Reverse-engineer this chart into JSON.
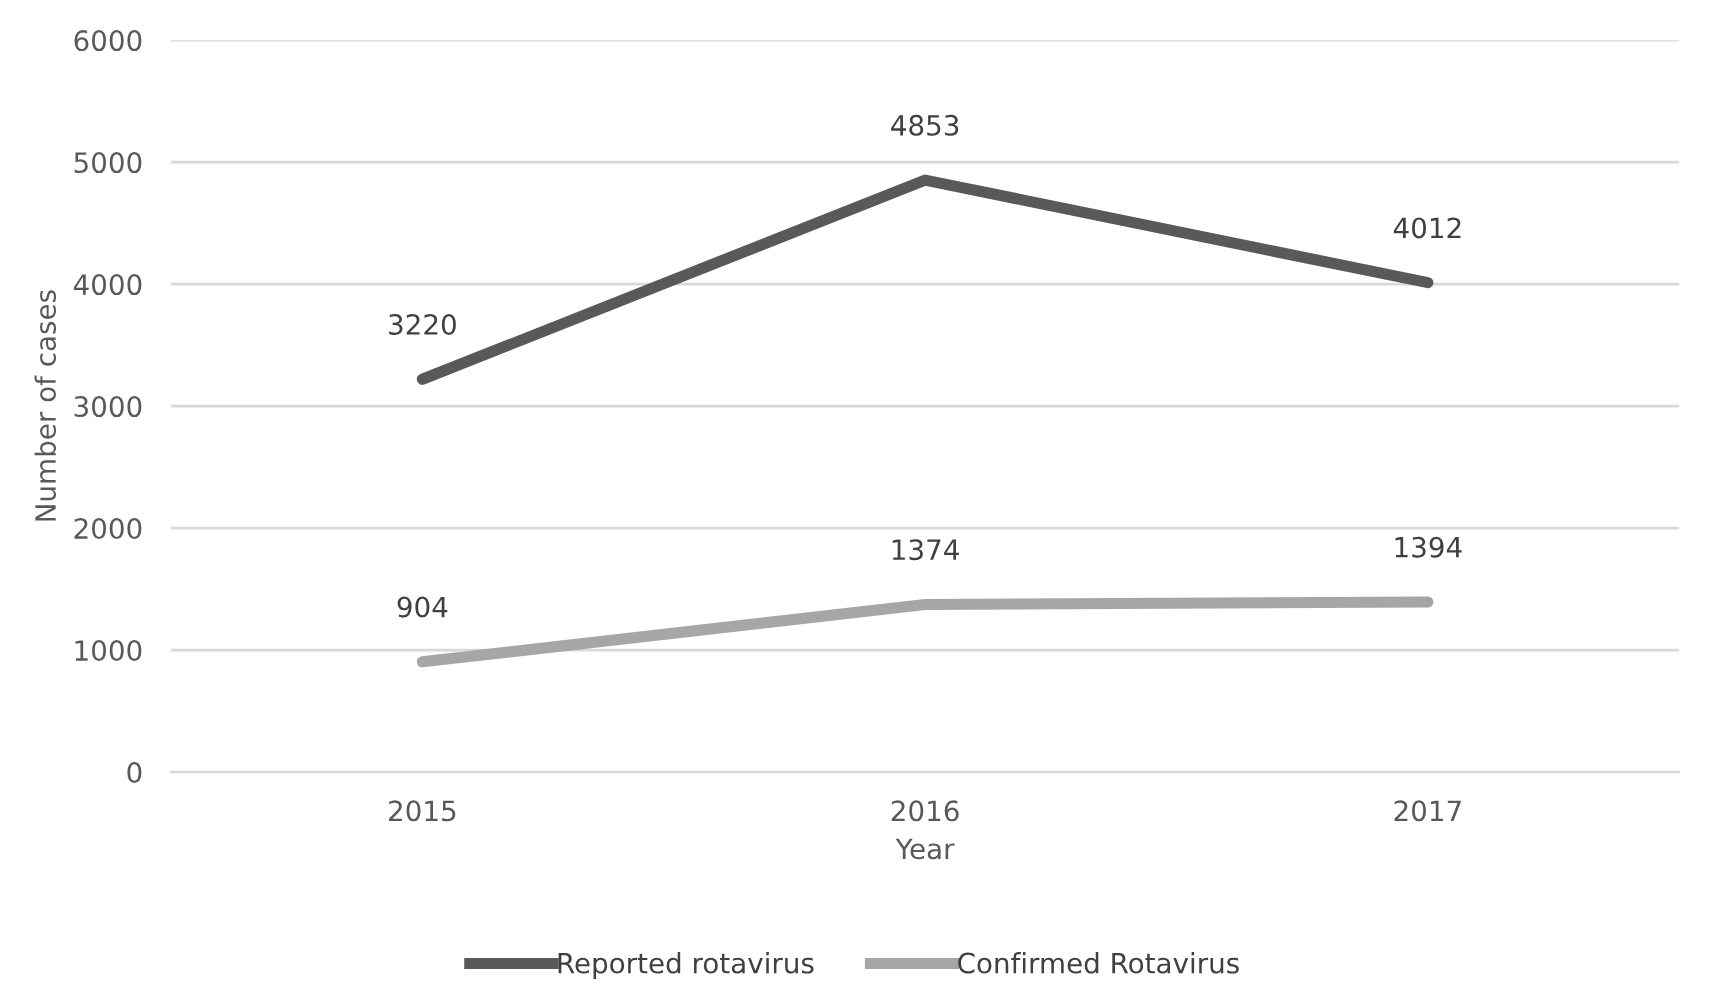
{
  "chart_data": {
    "type": "line",
    "xlabel": "Year",
    "ylabel": "Number of cases",
    "categories": [
      "2015",
      "2016",
      "2017"
    ],
    "series": [
      {
        "name": "Reported rotavirus",
        "color": "#595959",
        "values": [
          3220,
          4853,
          4012
        ]
      },
      {
        "name": "Confirmed Rotavirus",
        "color": "#a6a6a6",
        "values": [
          904,
          1374,
          1394
        ]
      }
    ],
    "ylim": [
      0,
      6000
    ],
    "yticks": [
      0,
      1000,
      2000,
      3000,
      4000,
      5000,
      6000
    ],
    "grid": "y",
    "legend": "bottom",
    "data_labels": true,
    "marker": "none",
    "line_style": "solid"
  }
}
